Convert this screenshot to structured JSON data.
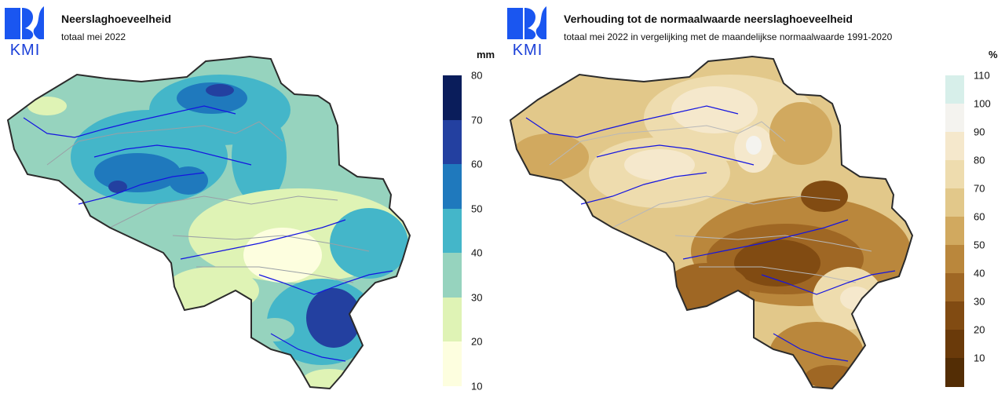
{
  "left": {
    "logo_text": "KMI",
    "title": "Neerslaghoeveelheid",
    "subtitle": "totaal mei 2022",
    "legend": {
      "unit": "mm",
      "ticks": [
        "80",
        "70",
        "60",
        "50",
        "40",
        "30",
        "20",
        "10"
      ],
      "colors": [
        "#0a1d5b",
        "#2340a0",
        "#1f79bd",
        "#44b6c9",
        "#96d3be",
        "#dff3b5",
        "#fdfedf"
      ]
    }
  },
  "right": {
    "logo_text": "KMI",
    "title": "Verhouding tot de normaalwaarde neerslaghoeveelheid",
    "subtitle": "totaal mei 2022 in vergelijking met de maandelijkse normaalwaarde 1991-2020",
    "legend": {
      "unit": "%",
      "ticks": [
        "110",
        "100",
        "90",
        "80",
        "70",
        "60",
        "50",
        "40",
        "30",
        "20",
        "10"
      ],
      "colors": [
        "#d7efea",
        "#f4f3ef",
        "#f5e8cc",
        "#eedcae",
        "#e2c88a",
        "#d1a95f",
        "#ba873c",
        "#9f6724",
        "#814b12",
        "#6a3a0a",
        "#532d05"
      ]
    }
  }
}
